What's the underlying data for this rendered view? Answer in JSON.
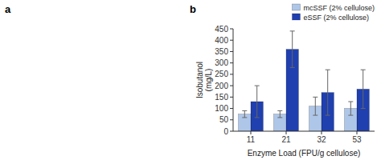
{
  "chart_data": {
    "type": "bar",
    "x_label": "Enzyme Load (FPU/g cellulose)",
    "y_label": "Isobutanol\n(mg/L)",
    "categories": [
      "11",
      "21",
      "32",
      "53"
    ],
    "series": [
      {
        "name": "mcSSF (2% cellulose)",
        "color": "#aec6e8",
        "values": [
          75,
          75,
          110,
          100
        ],
        "errors": [
          15,
          15,
          40,
          30
        ]
      },
      {
        "name": "eSSF (2% cellulose)",
        "color": "#2040b0",
        "values": [
          130,
          360,
          170,
          185
        ],
        "errors": [
          70,
          80,
          100,
          85
        ]
      }
    ],
    "ylim": [
      0,
      450
    ],
    "yticks": [
      0,
      50,
      100,
      150,
      200,
      250,
      300,
      350,
      400,
      450
    ],
    "legend": "upper right",
    "annotations": [
      "a",
      "b"
    ]
  }
}
